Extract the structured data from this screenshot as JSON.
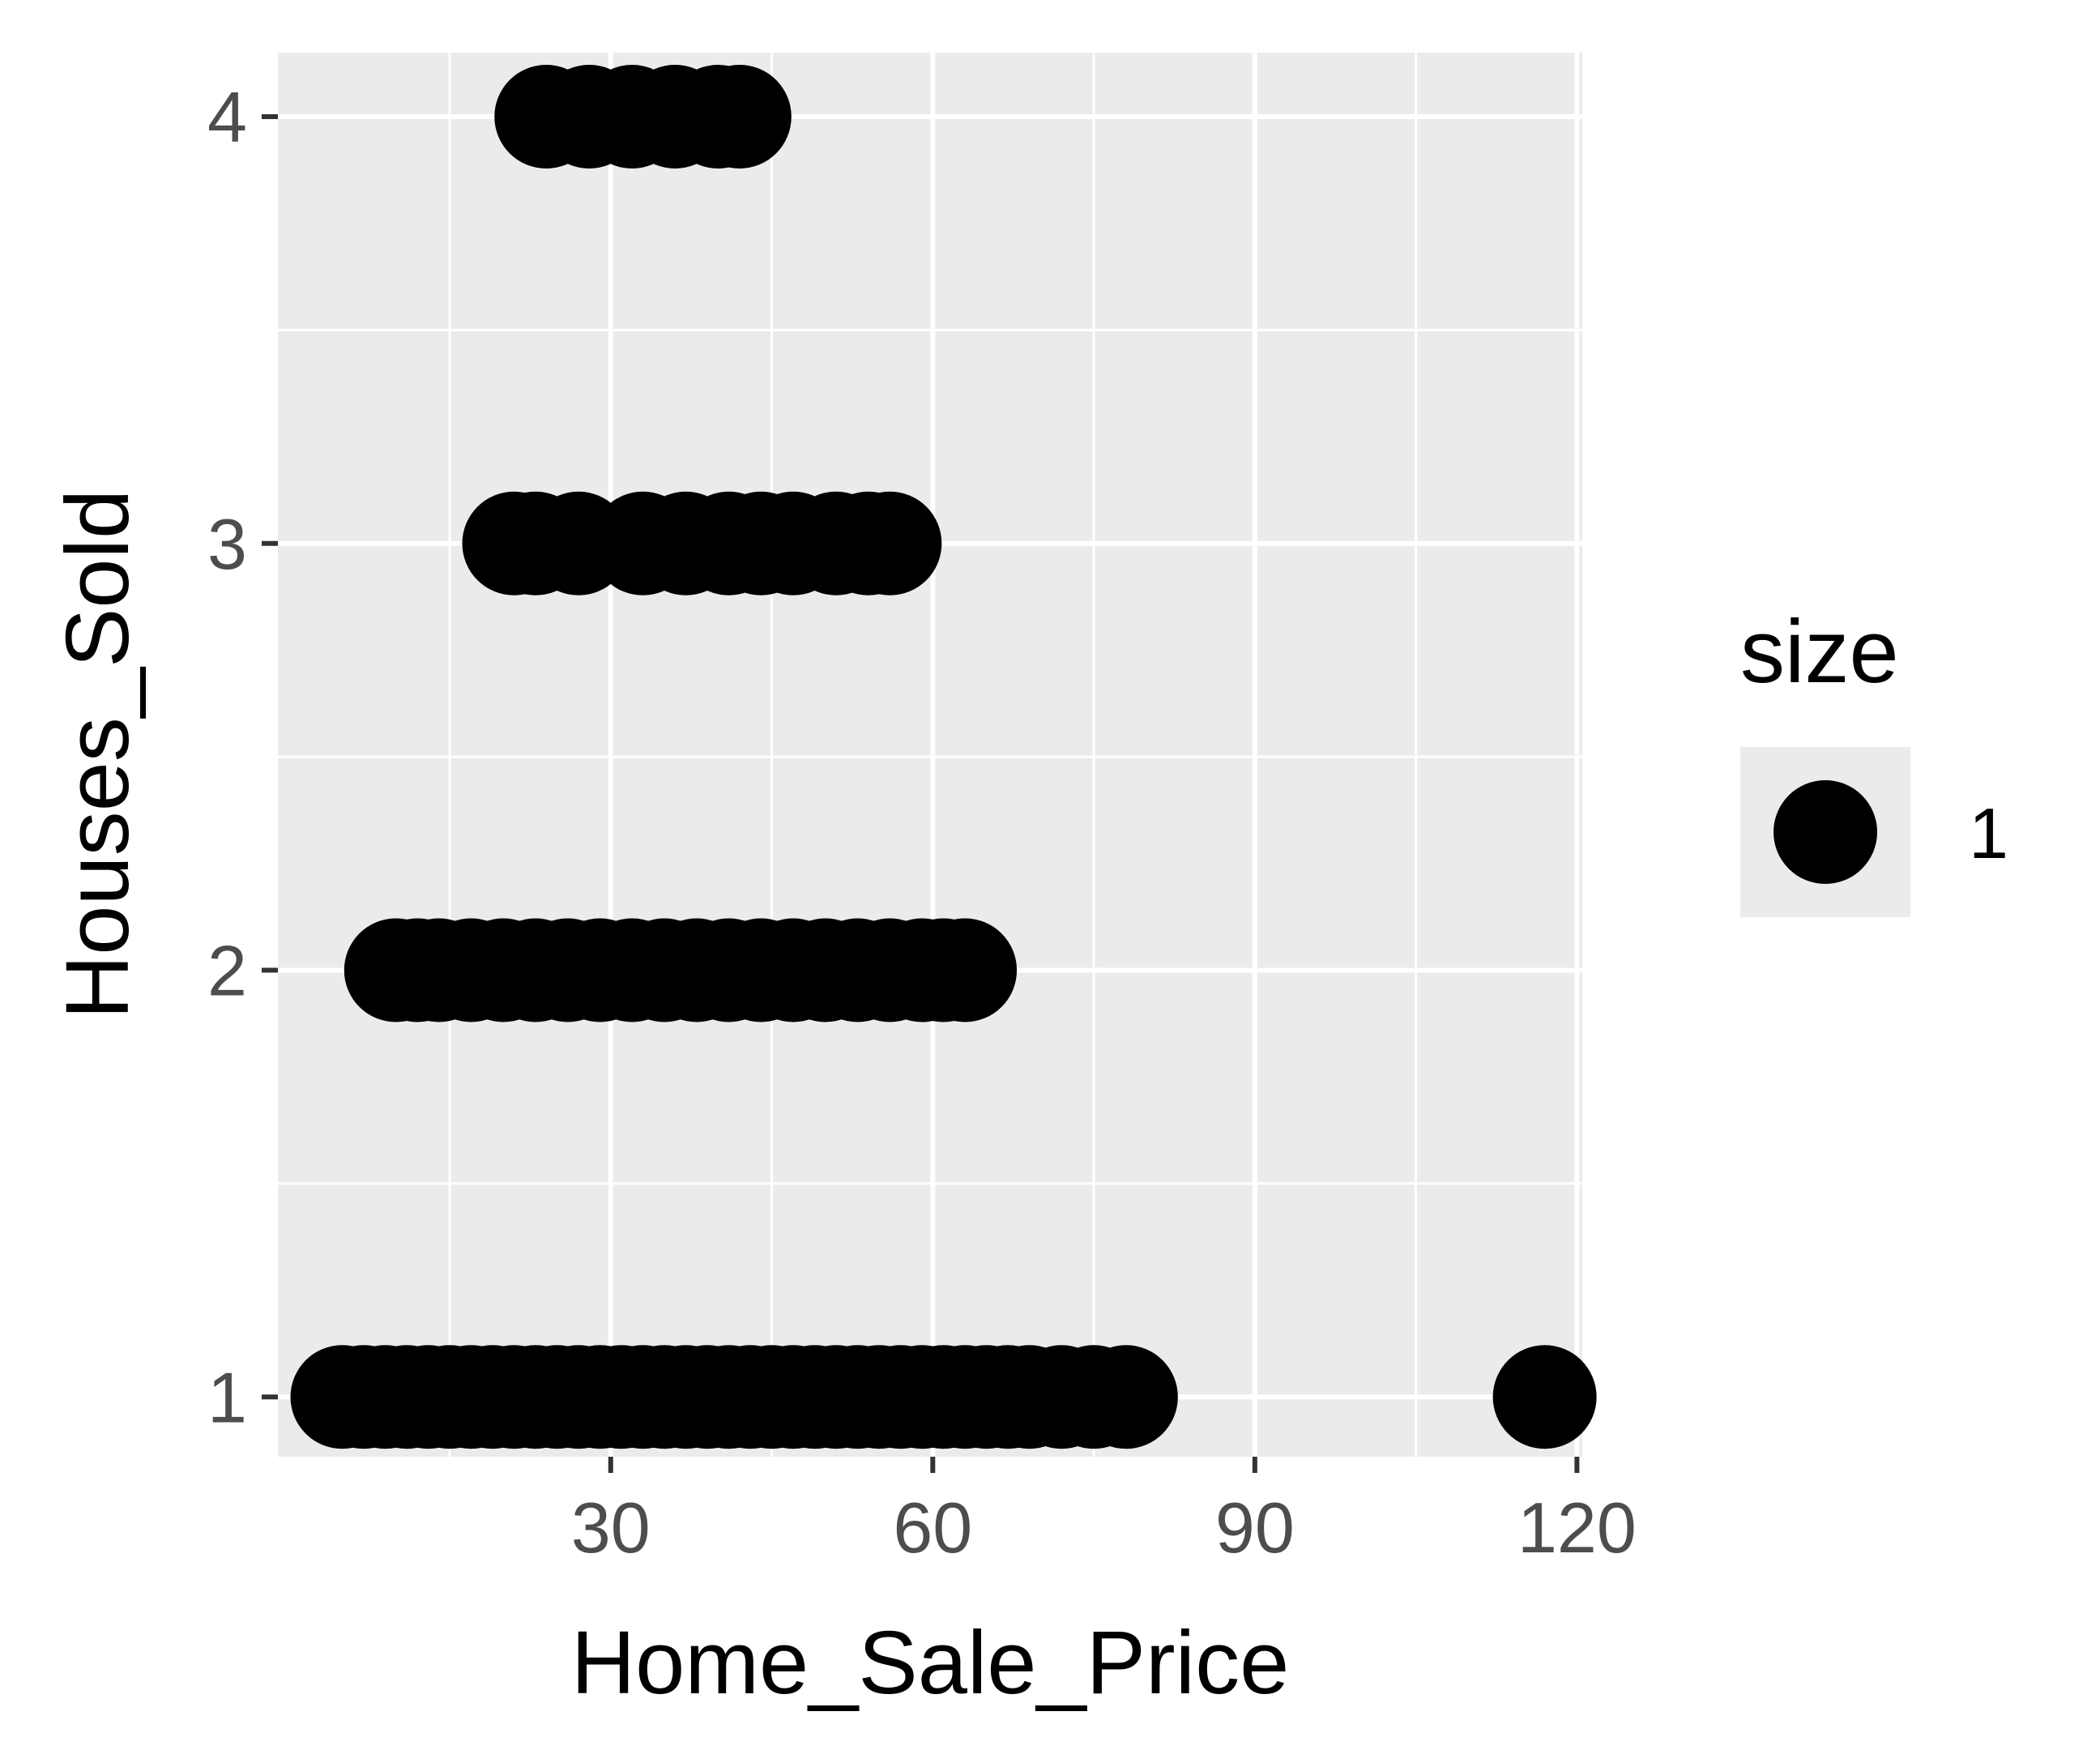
{
  "chart_data": {
    "type": "scatter",
    "title": "",
    "xlabel": "Home_Sale_Price",
    "ylabel": "Houses_Sold",
    "xlim": [
      -1,
      120.5
    ],
    "ylim": [
      0.86,
      4.15
    ],
    "x_ticks": [
      30,
      60,
      90,
      120
    ],
    "x_tick_labels": [
      "30",
      "60",
      "90",
      "120"
    ],
    "y_ticks": [
      1,
      2,
      3,
      4
    ],
    "y_tick_labels": [
      "1",
      "2",
      "3",
      "4"
    ],
    "x_minor_gridlines": [
      15,
      45,
      75,
      105
    ],
    "y_minor_gridlines": [
      1.5,
      2.5,
      3.5
    ],
    "grid": true,
    "panel_background": "#ebebeb",
    "gridline_color": "#ffffff",
    "point_color": "#000000",
    "legend": {
      "title": "size",
      "entries": [
        {
          "label": "1"
        }
      ],
      "placement": "right"
    },
    "series": [
      {
        "points": [
          {
            "x": 5,
            "y": 1
          },
          {
            "x": 7,
            "y": 1
          },
          {
            "x": 9,
            "y": 1
          },
          {
            "x": 11,
            "y": 1
          },
          {
            "x": 13,
            "y": 1
          },
          {
            "x": 15,
            "y": 1
          },
          {
            "x": 17,
            "y": 1
          },
          {
            "x": 19,
            "y": 1
          },
          {
            "x": 21,
            "y": 1
          },
          {
            "x": 23,
            "y": 1
          },
          {
            "x": 25,
            "y": 1
          },
          {
            "x": 27,
            "y": 1
          },
          {
            "x": 29,
            "y": 1
          },
          {
            "x": 31,
            "y": 1
          },
          {
            "x": 33,
            "y": 1
          },
          {
            "x": 35,
            "y": 1
          },
          {
            "x": 37,
            "y": 1
          },
          {
            "x": 39,
            "y": 1
          },
          {
            "x": 41,
            "y": 1
          },
          {
            "x": 43,
            "y": 1
          },
          {
            "x": 45,
            "y": 1
          },
          {
            "x": 47,
            "y": 1
          },
          {
            "x": 49,
            "y": 1
          },
          {
            "x": 51,
            "y": 1
          },
          {
            "x": 53,
            "y": 1
          },
          {
            "x": 55,
            "y": 1
          },
          {
            "x": 57,
            "y": 1
          },
          {
            "x": 59,
            "y": 1
          },
          {
            "x": 61,
            "y": 1
          },
          {
            "x": 63,
            "y": 1
          },
          {
            "x": 65,
            "y": 1
          },
          {
            "x": 67,
            "y": 1
          },
          {
            "x": 69,
            "y": 1
          },
          {
            "x": 72,
            "y": 1
          },
          {
            "x": 75,
            "y": 1
          },
          {
            "x": 78,
            "y": 1
          },
          {
            "x": 117,
            "y": 1
          },
          {
            "x": 10,
            "y": 2
          },
          {
            "x": 12,
            "y": 2
          },
          {
            "x": 14,
            "y": 2
          },
          {
            "x": 17,
            "y": 2
          },
          {
            "x": 20,
            "y": 2
          },
          {
            "x": 23,
            "y": 2
          },
          {
            "x": 26,
            "y": 2
          },
          {
            "x": 29,
            "y": 2
          },
          {
            "x": 32,
            "y": 2
          },
          {
            "x": 35,
            "y": 2
          },
          {
            "x": 38,
            "y": 2
          },
          {
            "x": 41,
            "y": 2
          },
          {
            "x": 44,
            "y": 2
          },
          {
            "x": 47,
            "y": 2
          },
          {
            "x": 50,
            "y": 2
          },
          {
            "x": 53,
            "y": 2
          },
          {
            "x": 56,
            "y": 2
          },
          {
            "x": 59,
            "y": 2
          },
          {
            "x": 61,
            "y": 2
          },
          {
            "x": 63,
            "y": 2
          },
          {
            "x": 21,
            "y": 3
          },
          {
            "x": 23,
            "y": 3
          },
          {
            "x": 27,
            "y": 3
          },
          {
            "x": 33,
            "y": 3
          },
          {
            "x": 37,
            "y": 3
          },
          {
            "x": 41,
            "y": 3
          },
          {
            "x": 44,
            "y": 3
          },
          {
            "x": 47,
            "y": 3
          },
          {
            "x": 51,
            "y": 3
          },
          {
            "x": 54,
            "y": 3
          },
          {
            "x": 56,
            "y": 3
          },
          {
            "x": 24,
            "y": 4
          },
          {
            "x": 28,
            "y": 4
          },
          {
            "x": 32,
            "y": 4
          },
          {
            "x": 36,
            "y": 4
          },
          {
            "x": 40,
            "y": 4
          },
          {
            "x": 42,
            "y": 4
          }
        ]
      }
    ]
  }
}
